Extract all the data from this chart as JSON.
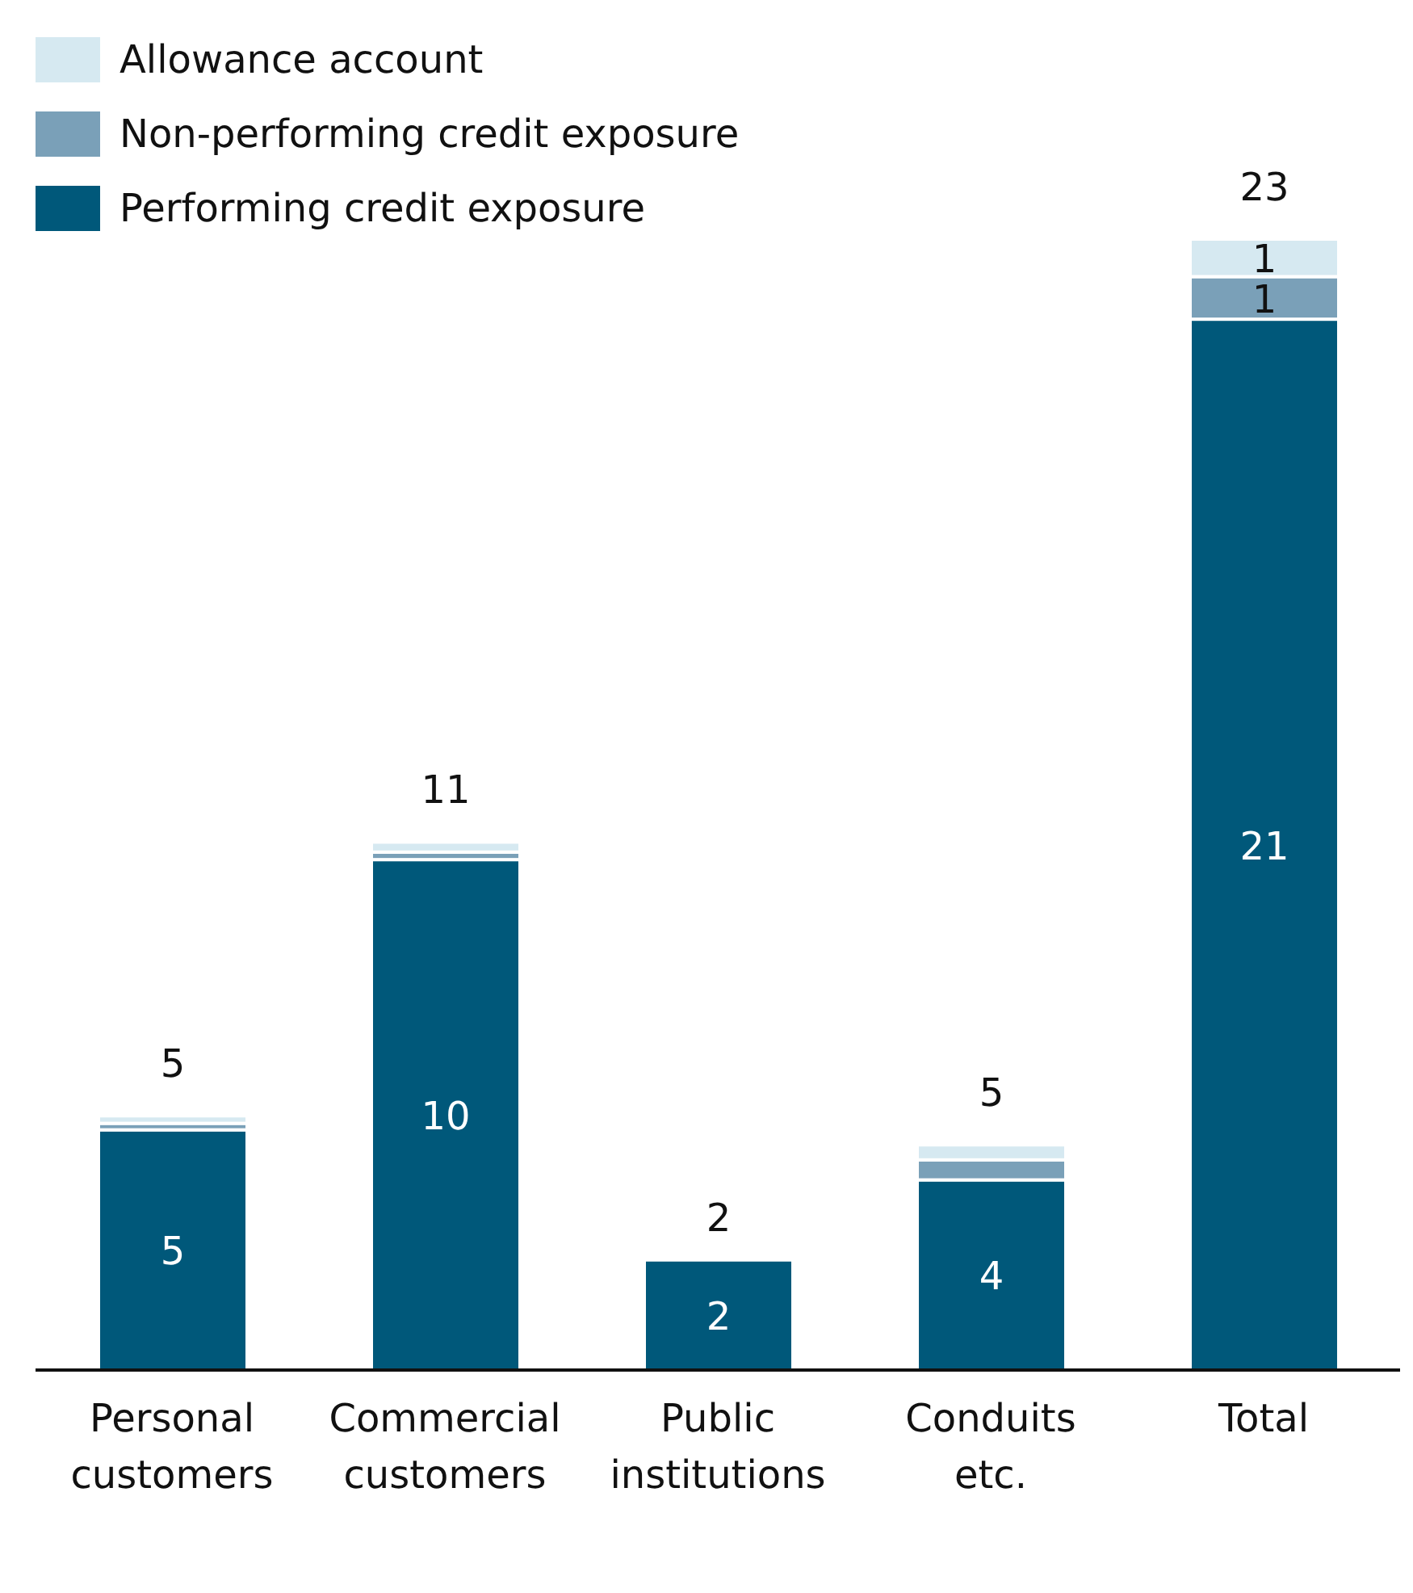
{
  "chart_data": {
    "type": "bar",
    "stacked": true,
    "categories": [
      "Personal customers",
      "Commercial customers",
      "Public institutions",
      "Conduits etc.",
      "Total"
    ],
    "series": [
      {
        "name": "Performing credit exposure",
        "color": "#00587a",
        "values": [
          4.8,
          10.2,
          2.2,
          3.8,
          21.0
        ],
        "value_labels": [
          "5",
          "10",
          "2",
          "4",
          "21"
        ]
      },
      {
        "name": "Non-performing credit exposure",
        "color": "#7aa0b8",
        "values": [
          0.13,
          0.15,
          null,
          0.4,
          0.85
        ],
        "value_labels": [
          null,
          null,
          null,
          null,
          "1"
        ]
      },
      {
        "name": "Allowance account",
        "color": "#d6e9f1",
        "values": [
          0.15,
          0.2,
          null,
          0.3,
          0.75
        ],
        "value_labels": [
          null,
          null,
          null,
          null,
          "1"
        ]
      }
    ],
    "totals": [
      "5",
      "11",
      "2",
      "5",
      "23"
    ],
    "legend": "top left",
    "grid": false
  }
}
